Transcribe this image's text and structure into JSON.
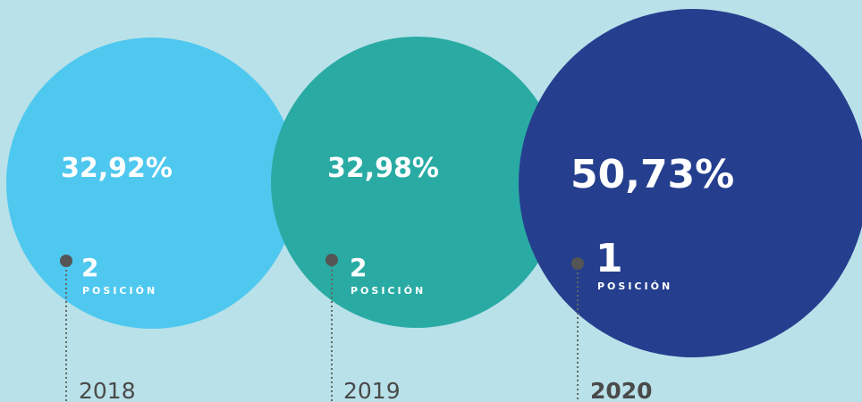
{
  "items": [
    {
      "value": "32,92%",
      "rank": "2",
      "rank_label": "POSICIÓN",
      "year": "2018"
    },
    {
      "value": "32,98%",
      "rank": "2",
      "rank_label": "POSICIÓN",
      "year": "2019"
    },
    {
      "value": "50,73%",
      "rank": "1",
      "rank_label": "POSICIÓN",
      "year": "2020"
    }
  ]
}
